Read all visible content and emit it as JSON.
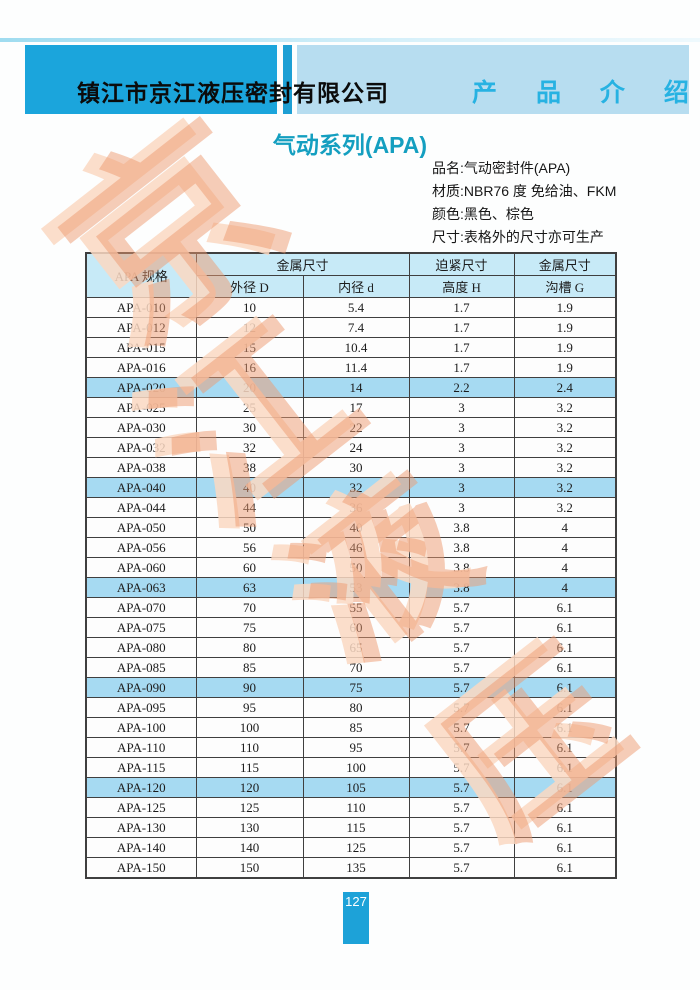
{
  "header": {
    "company_name": "镇江市京江液压密封有限公司",
    "section_title": "产 品 介 绍"
  },
  "title": "气动系列(APA)",
  "product_info": {
    "line1": "品名:气动密封件(APA)",
    "line2": "材质:NBR76 度 免给油、FKM",
    "line3": "颜色:黑色、棕色",
    "line4": "尺寸:表格外的尺寸亦可生产"
  },
  "watermark": {
    "char1": "京",
    "char2": "江",
    "char3": "液",
    "char4": "压"
  },
  "page_number": "127",
  "colors": {
    "header_dark_blue": "#1ba5dc",
    "header_light_blue": "#b7ddf0",
    "section_title_cyan": "#27b2e2",
    "title_teal": "#149fc0",
    "table_header_bg": "#c7eaf7",
    "highlight_row_bg": "#a6daf2",
    "watermark_salmon": "#ee9970",
    "page_number_bg": "#1da2d8"
  },
  "table": {
    "header": {
      "spec_label": "APA 规格",
      "metal_group": "金属尺寸",
      "press_group": "迫紧尺寸",
      "metal_group2": "金属尺寸",
      "sub_od": "外径 D",
      "sub_id": "内径 d",
      "sub_h": "高度 H",
      "sub_g": "沟槽 G"
    },
    "rows": [
      {
        "spec": "APA-010",
        "d_out": "10",
        "d_in": "5.4",
        "h": "1.7",
        "g": "1.9",
        "highlight": false
      },
      {
        "spec": "APA-012",
        "d_out": "12",
        "d_in": "7.4",
        "h": "1.7",
        "g": "1.9",
        "highlight": false
      },
      {
        "spec": "APA-015",
        "d_out": "15",
        "d_in": "10.4",
        "h": "1.7",
        "g": "1.9",
        "highlight": false
      },
      {
        "spec": "APA-016",
        "d_out": "16",
        "d_in": "11.4",
        "h": "1.7",
        "g": "1.9",
        "highlight": false
      },
      {
        "spec": "APA-020",
        "d_out": "20",
        "d_in": "14",
        "h": "2.2",
        "g": "2.4",
        "highlight": true
      },
      {
        "spec": "APA-025",
        "d_out": "25",
        "d_in": "17",
        "h": "3",
        "g": "3.2",
        "highlight": false
      },
      {
        "spec": "APA-030",
        "d_out": "30",
        "d_in": "22",
        "h": "3",
        "g": "3.2",
        "highlight": false
      },
      {
        "spec": "APA-032",
        "d_out": "32",
        "d_in": "24",
        "h": "3",
        "g": "3.2",
        "highlight": false
      },
      {
        "spec": "APA-038",
        "d_out": "38",
        "d_in": "30",
        "h": "3",
        "g": "3.2",
        "highlight": false
      },
      {
        "spec": "APA-040",
        "d_out": "40",
        "d_in": "32",
        "h": "3",
        "g": "3.2",
        "highlight": true
      },
      {
        "spec": "APA-044",
        "d_out": "44",
        "d_in": "36",
        "h": "3",
        "g": "3.2",
        "highlight": false
      },
      {
        "spec": "APA-050",
        "d_out": "50",
        "d_in": "40",
        "h": "3.8",
        "g": "4",
        "highlight": false
      },
      {
        "spec": "APA-056",
        "d_out": "56",
        "d_in": "46",
        "h": "3.8",
        "g": "4",
        "highlight": false
      },
      {
        "spec": "APA-060",
        "d_out": "60",
        "d_in": "50",
        "h": "3.8",
        "g": "4",
        "highlight": false
      },
      {
        "spec": "APA-063",
        "d_out": "63",
        "d_in": "53",
        "h": "3.8",
        "g": "4",
        "highlight": true
      },
      {
        "spec": "APA-070",
        "d_out": "70",
        "d_in": "55",
        "h": "5.7",
        "g": "6.1",
        "highlight": false
      },
      {
        "spec": "APA-075",
        "d_out": "75",
        "d_in": "60",
        "h": "5.7",
        "g": "6.1",
        "highlight": false
      },
      {
        "spec": "APA-080",
        "d_out": "80",
        "d_in": "65",
        "h": "5.7",
        "g": "6.1",
        "highlight": false
      },
      {
        "spec": "APA-085",
        "d_out": "85",
        "d_in": "70",
        "h": "5.7",
        "g": "6.1",
        "highlight": false
      },
      {
        "spec": "APA-090",
        "d_out": "90",
        "d_in": "75",
        "h": "5.7",
        "g": "6.1",
        "highlight": true
      },
      {
        "spec": "APA-095",
        "d_out": "95",
        "d_in": "80",
        "h": "5.7",
        "g": "6.1",
        "highlight": false
      },
      {
        "spec": "APA-100",
        "d_out": "100",
        "d_in": "85",
        "h": "5.7",
        "g": "6.1",
        "highlight": false
      },
      {
        "spec": "APA-110",
        "d_out": "110",
        "d_in": "95",
        "h": "5.7",
        "g": "6.1",
        "highlight": false
      },
      {
        "spec": "APA-115",
        "d_out": "115",
        "d_in": "100",
        "h": "5.7",
        "g": "6.1",
        "highlight": false
      },
      {
        "spec": "APA-120",
        "d_out": "120",
        "d_in": "105",
        "h": "5.7",
        "g": "6.1",
        "highlight": true
      },
      {
        "spec": "APA-125",
        "d_out": "125",
        "d_in": "110",
        "h": "5.7",
        "g": "6.1",
        "highlight": false
      },
      {
        "spec": "APA-130",
        "d_out": "130",
        "d_in": "115",
        "h": "5.7",
        "g": "6.1",
        "highlight": false
      },
      {
        "spec": "APA-140",
        "d_out": "140",
        "d_in": "125",
        "h": "5.7",
        "g": "6.1",
        "highlight": false
      },
      {
        "spec": "APA-150",
        "d_out": "150",
        "d_in": "135",
        "h": "5.7",
        "g": "6.1",
        "highlight": false
      }
    ]
  }
}
